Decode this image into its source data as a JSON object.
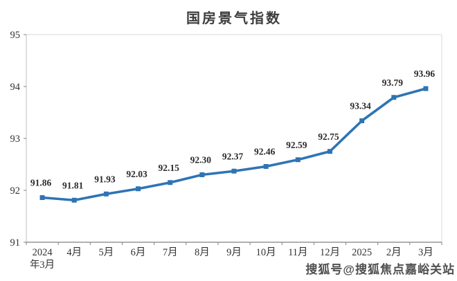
{
  "title": "国房景气指数",
  "watermark": "搜狐号@搜狐焦点嘉峪关站",
  "colors": {
    "line": "#2E74B5",
    "marker": "#2E74B5",
    "label_text": "#2b2b2b",
    "tick_text": "#333333",
    "axis_bottom": "#808080",
    "axis_left": "#bfbfbf",
    "border_top_right": "#d9d9d9",
    "title_text": "#3d3d3d",
    "watermark_text": "#4f4f4f"
  },
  "chart_data": {
    "type": "line",
    "title": "国房景气指数",
    "categories": [
      "2024\n年3月",
      "4月",
      "5月",
      "6月",
      "7月",
      "8月",
      "9月",
      "10月",
      "11月",
      "12月",
      "2025",
      "2月",
      "3月"
    ],
    "values": [
      91.86,
      91.81,
      91.93,
      92.03,
      92.15,
      92.3,
      92.37,
      92.46,
      92.59,
      92.75,
      93.34,
      93.79,
      93.96
    ],
    "value_labels": [
      "91.86",
      "91.81",
      "91.93",
      "92.03",
      "92.15",
      "92.30",
      "92.37",
      "92.46",
      "92.59",
      "92.75",
      "93.34",
      "93.79",
      "93.96"
    ],
    "ylim": [
      91,
      95
    ],
    "yticks": [
      91,
      92,
      93,
      94,
      95
    ],
    "xlabel": "",
    "ylabel": "",
    "grid": false,
    "legend": "none",
    "marker_style": "square",
    "data_labels_shown": true
  }
}
